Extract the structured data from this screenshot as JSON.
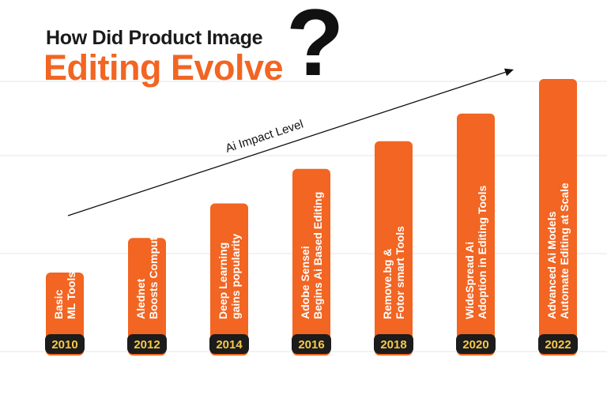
{
  "title": {
    "line1": "How Did Product Image",
    "line2": "Editing Evolve",
    "question_mark": "?"
  },
  "trend": {
    "label": "Ai Impact Level"
  },
  "colors": {
    "bar": "#f26522",
    "year_badge_bg": "#1c1c1c",
    "year_text": "#f7c948",
    "grid": "#e4e4e4",
    "accent": "#f26522"
  },
  "chart_data": {
    "type": "bar",
    "title": "How Did Product Image Editing Evolve",
    "xlabel": "",
    "ylabel": "Ai Impact Level",
    "categories": [
      "2010",
      "2012",
      "2014",
      "2016",
      "2018",
      "2020",
      "2022"
    ],
    "values": [
      1.2,
      1.7,
      2.2,
      2.7,
      3.1,
      3.5,
      4.0
    ],
    "ylim": [
      0,
      4.5
    ],
    "grid": true,
    "bar_labels": [
      [
        "Basic",
        "ML Tools"
      ],
      [
        "Alednet",
        "Boosts Computer"
      ],
      [
        "Deep Learning",
        "gains popularity"
      ],
      [
        "Adobe Sensei",
        "Begins Ai Based Editing"
      ],
      [
        "Remove.bg &",
        "Fotor smart Tools"
      ],
      [
        "WideSpread Ai",
        "Adoption in Editing Tools"
      ],
      [
        "Advanced Ai Models",
        "Automate Editing at Scale"
      ]
    ]
  }
}
